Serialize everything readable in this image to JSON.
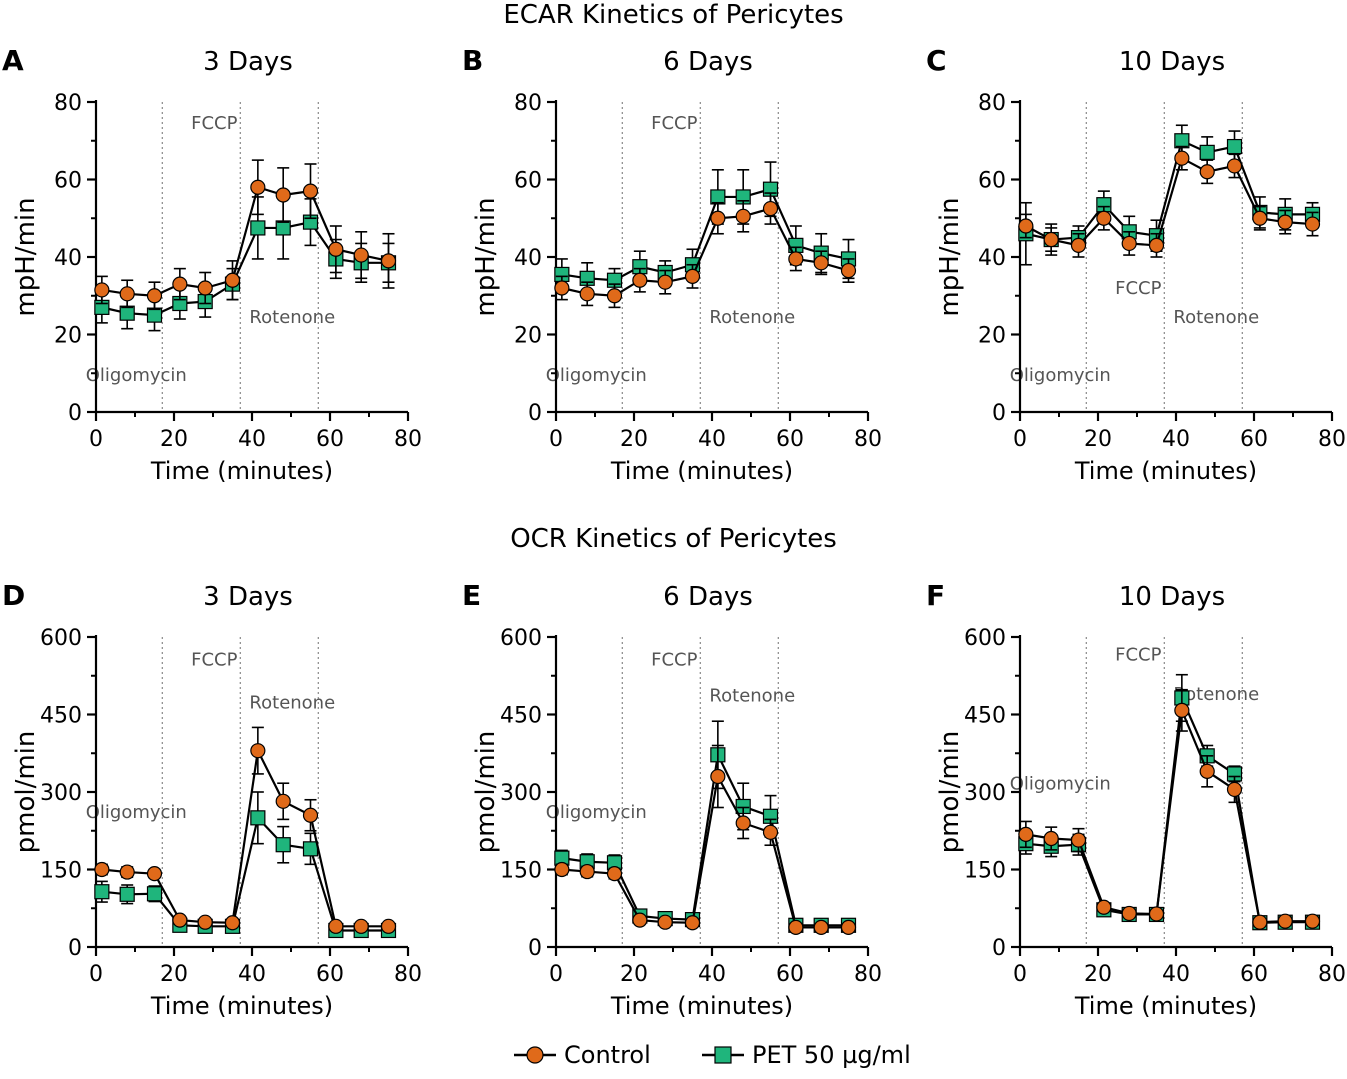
{
  "titles": {
    "ecar": "ECAR Kinetics of Pericytes",
    "ocr": "OCR Kinetics of Pericytes"
  },
  "legend": {
    "control": "Control",
    "pet": "PET 50 µg/ml"
  },
  "colors": {
    "control": "#e06a1a",
    "pet": "#1fb57c",
    "axis": "#000000",
    "vline": "#888888"
  },
  "chart_data": [
    {
      "type": "line",
      "panel": "A",
      "title": "3 Days",
      "xlabel": "Time (minutes)",
      "ylabel": "mpH/min",
      "xlim": [
        0,
        80
      ],
      "ylim": [
        0,
        80
      ],
      "xticks": [
        0,
        20,
        40,
        60,
        80
      ],
      "yticks": [
        0,
        20,
        40,
        60,
        80
      ],
      "injections": [
        {
          "x": 17,
          "label": "Oligomycin",
          "label_y": 8,
          "label_side": "left"
        },
        {
          "x": 37,
          "label": "FCCP",
          "label_y": 73,
          "label_side": "left"
        },
        {
          "x": 57,
          "label": "Rotenone",
          "label_y": 23,
          "label_side": "left"
        }
      ],
      "series": [
        {
          "name": "Control",
          "x": [
            1.5,
            8,
            15,
            21.5,
            28,
            35,
            41.5,
            48,
            55,
            61.5,
            68,
            75
          ],
          "y": [
            31.5,
            30.5,
            30,
            33,
            32,
            34,
            58,
            56,
            57,
            42,
            40.5,
            39
          ],
          "err": [
            3.5,
            3.5,
            3.5,
            4,
            4,
            5,
            7,
            7,
            7,
            6,
            6,
            7
          ]
        },
        {
          "name": "PET 50 µg/ml",
          "x": [
            1.5,
            8,
            15,
            21.5,
            28,
            35,
            41.5,
            48,
            55,
            61.5,
            68,
            75
          ],
          "y": [
            27,
            25.5,
            25,
            28,
            28.5,
            33,
            47.5,
            47.5,
            49,
            39.5,
            38.5,
            38.5
          ],
          "err": [
            4,
            4,
            4,
            4,
            4,
            4,
            8,
            8,
            6,
            5,
            5,
            5
          ]
        }
      ]
    },
    {
      "type": "line",
      "panel": "B",
      "title": "6 Days",
      "xlabel": "Time (minutes)",
      "ylabel": "mpH/min",
      "xlim": [
        0,
        80
      ],
      "ylim": [
        0,
        80
      ],
      "xticks": [
        0,
        20,
        40,
        60,
        80
      ],
      "yticks": [
        0,
        20,
        40,
        60,
        80
      ],
      "injections": [
        {
          "x": 17,
          "label": "Oligomycin",
          "label_y": 8,
          "label_side": "left"
        },
        {
          "x": 37,
          "label": "FCCP",
          "label_y": 73,
          "label_side": "left"
        },
        {
          "x": 57,
          "label": "Rotenone",
          "label_y": 23,
          "label_side": "left"
        }
      ],
      "series": [
        {
          "name": "Control",
          "x": [
            1.5,
            8,
            15,
            21.5,
            28,
            35,
            41.5,
            48,
            55,
            61.5,
            68,
            75
          ],
          "y": [
            32,
            30.5,
            30,
            34,
            33.5,
            35,
            50,
            50.5,
            52.5,
            39.5,
            38.5,
            36.5
          ],
          "err": [
            3,
            3,
            3,
            3,
            3,
            3,
            4,
            4,
            4,
            3,
            3,
            3
          ]
        },
        {
          "name": "PET 50 µg/ml",
          "x": [
            1.5,
            8,
            15,
            21.5,
            28,
            35,
            41.5,
            48,
            55,
            61.5,
            68,
            75
          ],
          "y": [
            35.5,
            34.5,
            34,
            37.5,
            36,
            38,
            55.5,
            55.5,
            57.5,
            43,
            41,
            39.5
          ],
          "err": [
            4,
            4,
            3,
            4,
            3,
            4,
            7,
            7,
            7,
            5,
            5,
            5
          ]
        }
      ]
    },
    {
      "type": "line",
      "panel": "C",
      "title": "10 Days",
      "xlabel": "Time (minutes)",
      "ylabel": "mpH/min",
      "xlim": [
        0,
        80
      ],
      "ylim": [
        0,
        80
      ],
      "xticks": [
        0,
        20,
        40,
        60,
        80
      ],
      "yticks": [
        0,
        20,
        40,
        60,
        80
      ],
      "injections": [
        {
          "x": 17,
          "label": "Oligomycin",
          "label_y": 8,
          "label_side": "left"
        },
        {
          "x": 37,
          "label": "FCCP",
          "label_y": 30.5,
          "label_side": "left"
        },
        {
          "x": 57,
          "label": "Rotenone",
          "label_y": 23,
          "label_side": "left"
        }
      ],
      "series": [
        {
          "name": "Control",
          "x": [
            1.5,
            8,
            15,
            21.5,
            28,
            35,
            41.5,
            48,
            55,
            61.5,
            68,
            75
          ],
          "y": [
            48,
            44.5,
            43,
            50,
            43.5,
            43,
            65.5,
            62,
            63.5,
            50,
            49,
            48.5
          ],
          "err": [
            3,
            3,
            3,
            3,
            3,
            3,
            3,
            3,
            3,
            3,
            3,
            3
          ]
        },
        {
          "name": "PET 50 µg/ml",
          "x": [
            1.5,
            8,
            15,
            21.5,
            28,
            35,
            41.5,
            48,
            55,
            61.5,
            68,
            75
          ],
          "y": [
            46,
            44.5,
            45,
            53.5,
            46.5,
            45.5,
            70,
            67,
            68.5,
            51.5,
            51,
            51
          ],
          "err": [
            8,
            4,
            3,
            3.5,
            4,
            4,
            4,
            4,
            4,
            4,
            4,
            3
          ]
        }
      ]
    },
    {
      "type": "line",
      "panel": "D",
      "title": "3 Days",
      "xlabel": "Time (minutes)",
      "ylabel": "pmol/min",
      "xlim": [
        0,
        80
      ],
      "ylim": [
        0,
        600
      ],
      "xticks": [
        0,
        20,
        40,
        60,
        80
      ],
      "yticks": [
        0,
        150,
        300,
        450,
        600
      ],
      "injections": [
        {
          "x": 17,
          "label": "Oligomycin",
          "label_y": 250,
          "label_side": "left"
        },
        {
          "x": 37,
          "label": "FCCP",
          "label_y": 545,
          "label_side": "left"
        },
        {
          "x": 57,
          "label": "Rotenone",
          "label_y": 462,
          "label_side": "left"
        }
      ],
      "series": [
        {
          "name": "Control",
          "x": [
            1.5,
            8,
            15,
            21.5,
            28,
            35,
            41.5,
            48,
            55,
            61.5,
            68,
            75
          ],
          "y": [
            150,
            145,
            142,
            52,
            48,
            47,
            380,
            282,
            255,
            40,
            40,
            40
          ],
          "err": [
            10,
            10,
            8,
            5,
            5,
            5,
            45,
            35,
            30,
            5,
            5,
            5
          ]
        },
        {
          "name": "PET 50 µg/ml",
          "x": [
            1.5,
            8,
            15,
            21.5,
            28,
            35,
            41.5,
            48,
            55,
            61.5,
            68,
            75
          ],
          "y": [
            107,
            102,
            103,
            42,
            40,
            40,
            250,
            198,
            190,
            32,
            32,
            32
          ],
          "err": [
            20,
            18,
            15,
            5,
            5,
            5,
            50,
            35,
            30,
            5,
            5,
            5
          ]
        }
      ]
    },
    {
      "type": "line",
      "panel": "E",
      "title": "6 Days",
      "xlabel": "Time (minutes)",
      "ylabel": "pmol/min",
      "xlim": [
        0,
        80
      ],
      "ylim": [
        0,
        600
      ],
      "xticks": [
        0,
        20,
        40,
        60,
        80
      ],
      "yticks": [
        0,
        150,
        300,
        450,
        600
      ],
      "injections": [
        {
          "x": 17,
          "label": "Oligomycin",
          "label_y": 250,
          "label_side": "left"
        },
        {
          "x": 37,
          "label": "FCCP",
          "label_y": 545,
          "label_side": "left"
        },
        {
          "x": 57,
          "label": "Rotenone",
          "label_y": 475,
          "label_side": "left"
        }
      ],
      "series": [
        {
          "name": "Control",
          "x": [
            1.5,
            8,
            15,
            21.5,
            28,
            35,
            41.5,
            48,
            55,
            61.5,
            68,
            75
          ],
          "y": [
            150,
            146,
            142,
            52,
            48,
            47,
            330,
            240,
            222,
            38,
            38,
            38
          ],
          "err": [
            10,
            10,
            10,
            5,
            5,
            5,
            60,
            30,
            25,
            5,
            5,
            5
          ]
        },
        {
          "name": "PET 50 µg/ml",
          "x": [
            1.5,
            8,
            15,
            21.5,
            28,
            35,
            41.5,
            48,
            55,
            61.5,
            68,
            75
          ],
          "y": [
            172,
            165,
            163,
            60,
            55,
            53,
            372,
            272,
            253,
            42,
            42,
            42
          ],
          "err": [
            15,
            15,
            15,
            5,
            5,
            5,
            65,
            45,
            40,
            5,
            5,
            5
          ]
        }
      ]
    },
    {
      "type": "line",
      "panel": "F",
      "title": "10 Days",
      "xlabel": "Time (minutes)",
      "ylabel": "pmol/min",
      "xlim": [
        0,
        80
      ],
      "ylim": [
        0,
        600
      ],
      "xticks": [
        0,
        20,
        40,
        60,
        80
      ],
      "yticks": [
        0,
        150,
        300,
        450,
        600
      ],
      "injections": [
        {
          "x": 17,
          "label": "Oligomycin",
          "label_y": 305,
          "label_side": "left"
        },
        {
          "x": 37,
          "label": "FCCP",
          "label_y": 555,
          "label_side": "left"
        },
        {
          "x": 57,
          "label": "Rotenone",
          "label_y": 478,
          "label_side": "left"
        }
      ],
      "series": [
        {
          "name": "Control",
          "x": [
            1.5,
            8,
            15,
            21.5,
            28,
            35,
            41.5,
            48,
            55,
            61.5,
            68,
            75
          ],
          "y": [
            218,
            210,
            207,
            77,
            65,
            64,
            458,
            340,
            305,
            48,
            50,
            50
          ],
          "err": [
            25,
            22,
            22,
            5,
            5,
            5,
            40,
            30,
            25,
            5,
            5,
            5
          ]
        },
        {
          "name": "PET 50 µg/ml",
          "x": [
            1.5,
            8,
            15,
            21.5,
            28,
            35,
            41.5,
            48,
            55,
            61.5,
            68,
            75
          ],
          "y": [
            200,
            195,
            198,
            72,
            63,
            63,
            482,
            370,
            335,
            47,
            48,
            48
          ],
          "err": [
            20,
            20,
            20,
            5,
            5,
            5,
            45,
            20,
            15,
            5,
            5,
            5
          ]
        }
      ]
    }
  ]
}
